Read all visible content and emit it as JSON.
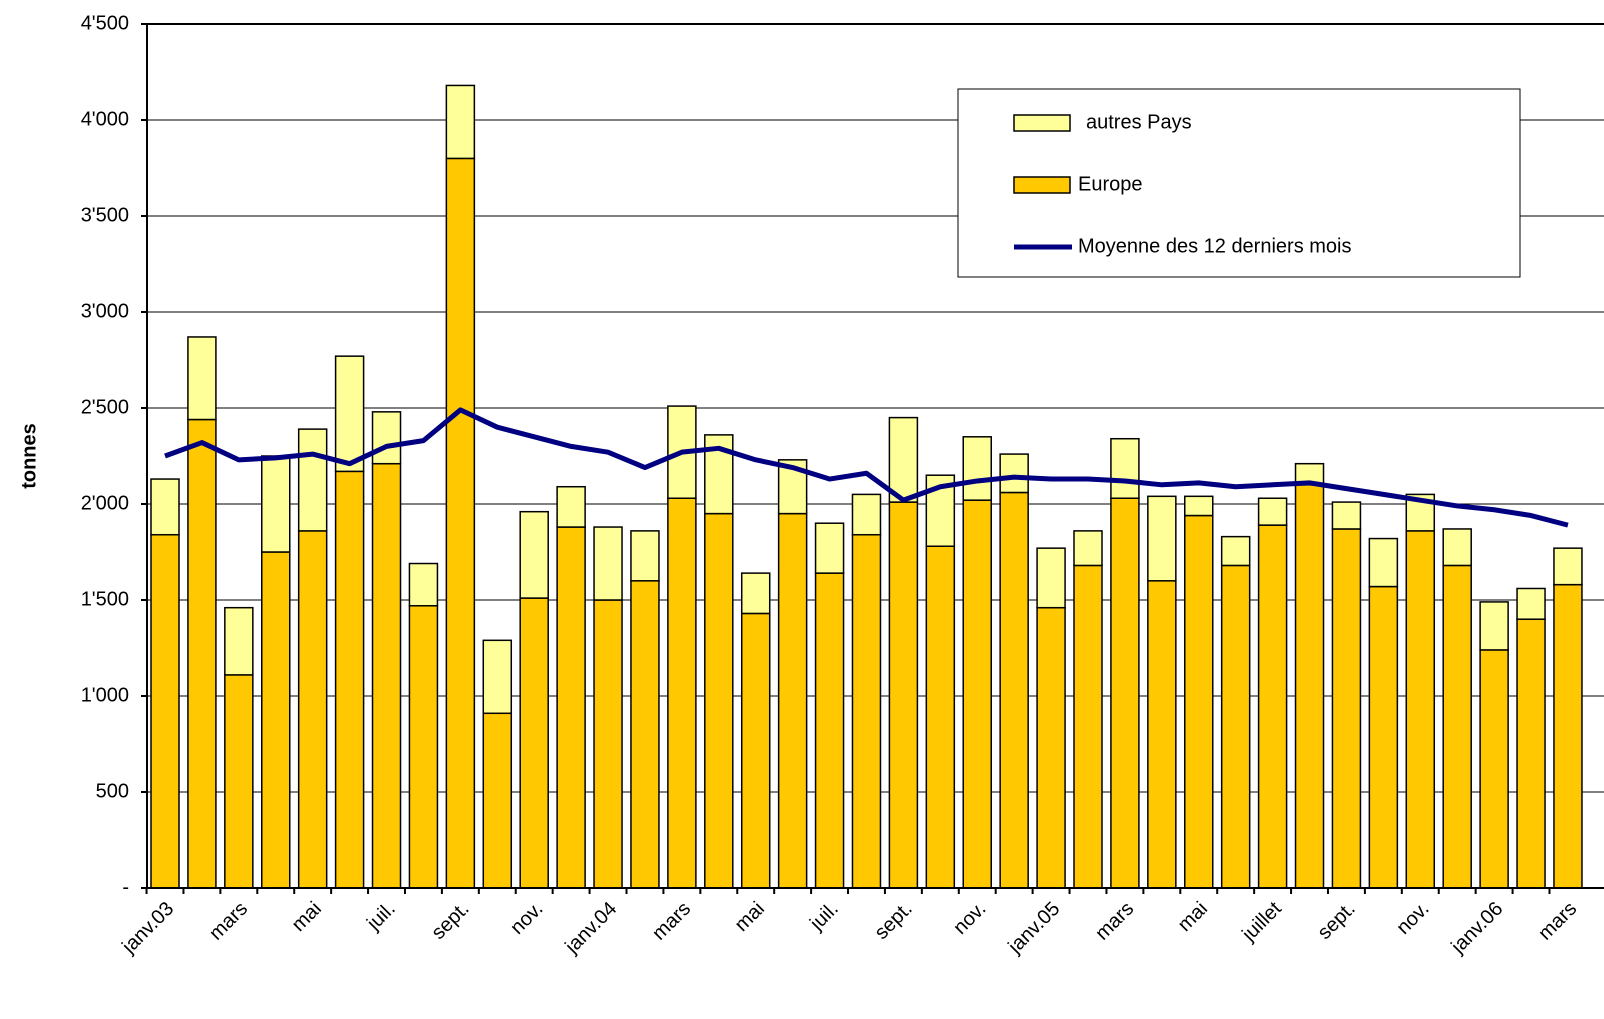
{
  "chart_data": {
    "type": "bar",
    "stacked": true,
    "y_label": "tonnes",
    "categories": [
      "janv.03",
      null,
      "mars",
      null,
      "mai",
      null,
      "juil.",
      null,
      "sept.",
      null,
      "nov.",
      null,
      "janv.04",
      null,
      "mars",
      null,
      "mai",
      null,
      "juil.",
      null,
      "sept.",
      null,
      "nov.",
      null,
      "janv.05",
      null,
      "mars",
      null,
      "mai",
      null,
      "juillet",
      null,
      "sept.",
      null,
      "nov.",
      null,
      "janv.06",
      null,
      "mars"
    ],
    "series": [
      {
        "name": "Europe",
        "type": "bar",
        "color": "#FFC800",
        "values": [
          1840,
          2440,
          1110,
          1750,
          1860,
          2170,
          2210,
          1470,
          3800,
          910,
          1510,
          1880,
          1500,
          1600,
          2030,
          1950,
          1430,
          1950,
          1640,
          1840,
          2010,
          1780,
          2020,
          2060,
          1460,
          1680,
          2030,
          1600,
          1940,
          1680,
          1890,
          2100,
          1870,
          1570,
          1860,
          1680,
          1240,
          1400,
          1580
        ]
      },
      {
        "name": "autres Pays",
        "type": "bar",
        "color": "#FFFF99",
        "values": [
          290,
          430,
          350,
          500,
          530,
          600,
          270,
          220,
          380,
          380,
          450,
          210,
          380,
          260,
          480,
          410,
          210,
          280,
          260,
          210,
          440,
          370,
          330,
          200,
          310,
          180,
          310,
          440,
          100,
          150,
          140,
          110,
          140,
          250,
          190,
          190,
          250,
          160,
          190
        ]
      },
      {
        "name": "Moyenne des 12 derniers mois",
        "type": "line",
        "color": "#000080",
        "values": [
          2250,
          2320,
          2230,
          2240,
          2260,
          2210,
          2300,
          2330,
          2490,
          2400,
          2350,
          2300,
          2270,
          2190,
          2270,
          2290,
          2230,
          2190,
          2130,
          2160,
          2020,
          2090,
          2120,
          2140,
          2130,
          2130,
          2120,
          2100,
          2110,
          2090,
          2100,
          2110,
          2080,
          2050,
          2020,
          1990,
          1970,
          1940,
          1890
        ]
      }
    ],
    "ylim": [
      0,
      4500
    ],
    "yticks": [
      {
        "value": 0,
        "label": "-"
      },
      500,
      {
        "value": 1000,
        "label": "1'000"
      },
      {
        "value": 1500,
        "label": "1'500"
      },
      {
        "value": 2000,
        "label": "2'000"
      },
      {
        "value": 2500,
        "label": "2'500"
      },
      {
        "value": 3000,
        "label": "3'000"
      },
      {
        "value": 3500,
        "label": "3'500"
      },
      {
        "value": 4000,
        "label": "4'000"
      },
      {
        "value": 4500,
        "label": "4'500"
      }
    ],
    "grid": true,
    "legend": "top-right"
  }
}
